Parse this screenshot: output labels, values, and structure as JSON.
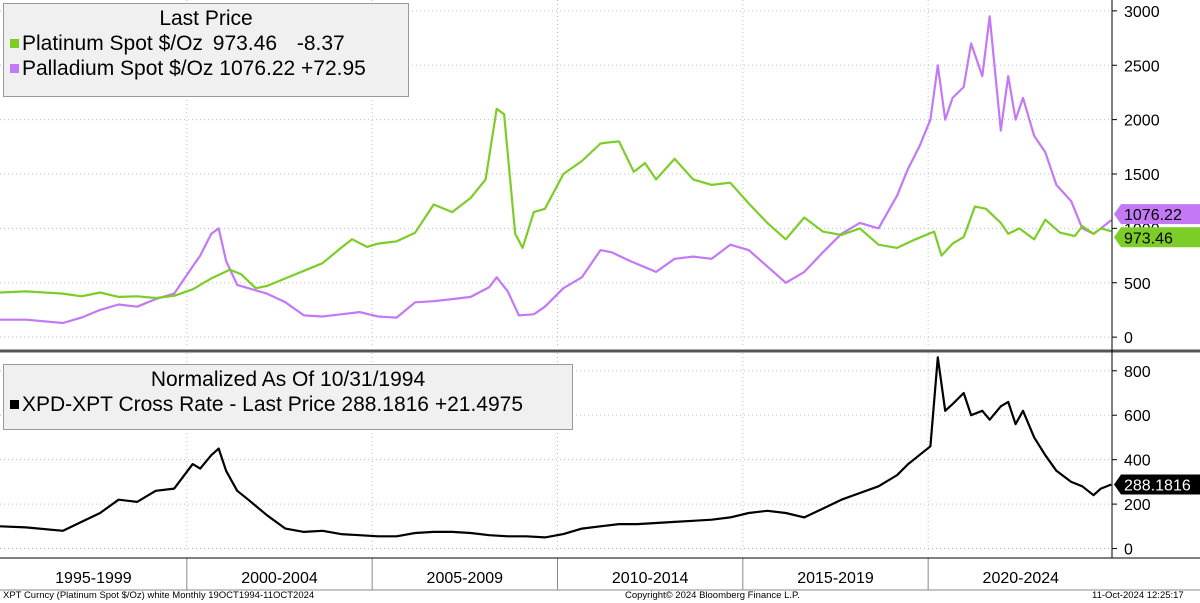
{
  "colors": {
    "platinum": "#7ccd28",
    "palladium": "#c379f5",
    "cross": "#000000",
    "grid": "#bfbfbf",
    "divider": "#555555"
  },
  "top_legend": {
    "title": "Last Price",
    "rows": [
      {
        "label": "Platinum Spot $/Oz",
        "last": "973.46",
        "change": "-8.37"
      },
      {
        "label": "Palladium Spot $/Oz",
        "last": "1076.22",
        "change": "+72.95"
      }
    ]
  },
  "bottom_legend": {
    "title": "Normalized As Of 10/31/1994",
    "row": {
      "label": "XPD-XPT Cross Rate - Last Price",
      "last": "288.1816",
      "change": "+21.4975"
    }
  },
  "tags": {
    "palladium": "1076.22",
    "platinum": "973.46",
    "cross": "288.1816"
  },
  "footer": {
    "left": "XPT Curncy (Platinum Spot $/Oz) white  Monthly 19OCT1994-11OCT2024",
    "center": "Copyright© 2024 Bloomberg Finance L.P.",
    "right": "11-Oct-2024 12:25:17"
  },
  "chart_data": [
    {
      "type": "line",
      "x_unit": "year",
      "xlim": [
        1994.8,
        2024.8
      ],
      "ylim": [
        -100,
        3100
      ],
      "yticks": [
        0,
        500,
        1000,
        1500,
        2000,
        2500,
        3000
      ],
      "grid": true,
      "legend_placement": "top-left",
      "period_labels": [
        "1995-1999",
        "2000-2004",
        "2005-2009",
        "2010-2014",
        "2015-2019",
        "2020-2024"
      ],
      "series": [
        {
          "name": "Platinum Spot $/Oz",
          "x": [
            1994.8,
            1995.5,
            1996.5,
            1997.0,
            1997.5,
            1998.0,
            1998.5,
            1999.0,
            1999.5,
            2000.0,
            2000.5,
            2001.0,
            2001.3,
            2001.7,
            2002.0,
            2002.5,
            2003.0,
            2003.5,
            2004.0,
            2004.3,
            2004.7,
            2005.0,
            2005.5,
            2006.0,
            2006.5,
            2007.0,
            2007.5,
            2007.9,
            2008.2,
            2008.4,
            2008.7,
            2008.9,
            2009.2,
            2009.5,
            2010.0,
            2010.5,
            2011.0,
            2011.2,
            2011.5,
            2011.9,
            2012.2,
            2012.5,
            2013.0,
            2013.5,
            2014.0,
            2014.5,
            2015.0,
            2015.5,
            2016.0,
            2016.5,
            2017.0,
            2017.5,
            2018.0,
            2018.5,
            2019.0,
            2019.5,
            2020.0,
            2020.2,
            2020.5,
            2020.8,
            2021.1,
            2021.4,
            2021.8,
            2022.0,
            2022.3,
            2022.7,
            2023.0,
            2023.4,
            2023.8,
            2024.0,
            2024.3,
            2024.5,
            2024.78
          ],
          "values": [
            410,
            420,
            400,
            375,
            410,
            370,
            375,
            360,
            380,
            440,
            540,
            620,
            580,
            450,
            470,
            540,
            610,
            680,
            820,
            900,
            830,
            860,
            880,
            960,
            1220,
            1150,
            1280,
            1450,
            2100,
            2050,
            950,
            820,
            1150,
            1180,
            1500,
            1620,
            1780,
            1790,
            1800,
            1520,
            1600,
            1450,
            1640,
            1450,
            1400,
            1420,
            1230,
            1050,
            900,
            1100,
            970,
            940,
            1000,
            850,
            820,
            900,
            970,
            750,
            860,
            920,
            1200,
            1180,
            1050,
            950,
            1000,
            900,
            1080,
            960,
            930,
            1020,
            950,
            1000,
            973.46
          ]
        },
        {
          "name": "Palladium Spot $/Oz",
          "x": [
            1994.8,
            1995.5,
            1996.5,
            1997.0,
            1997.5,
            1998.0,
            1998.5,
            1999.0,
            1999.5,
            2000.0,
            2000.2,
            2000.5,
            2000.7,
            2000.9,
            2001.2,
            2001.5,
            2002.0,
            2002.5,
            2003.0,
            2003.5,
            2004.0,
            2004.5,
            2005.0,
            2005.5,
            2006.0,
            2006.5,
            2007.0,
            2007.5,
            2008.0,
            2008.2,
            2008.5,
            2008.8,
            2009.2,
            2009.5,
            2010.0,
            2010.5,
            2011.0,
            2011.3,
            2011.8,
            2012.5,
            2013.0,
            2013.5,
            2014.0,
            2014.5,
            2015.0,
            2015.5,
            2016.0,
            2016.5,
            2017.0,
            2017.5,
            2018.0,
            2018.5,
            2019.0,
            2019.3,
            2019.6,
            2019.9,
            2020.1,
            2020.3,
            2020.5,
            2020.8,
            2021.0,
            2021.3,
            2021.5,
            2021.8,
            2022.0,
            2022.2,
            2022.4,
            2022.7,
            2023.0,
            2023.3,
            2023.7,
            2024.0,
            2024.3,
            2024.5,
            2024.78
          ],
          "values": [
            160,
            160,
            130,
            180,
            250,
            300,
            280,
            350,
            400,
            650,
            750,
            950,
            1000,
            700,
            480,
            450,
            400,
            320,
            200,
            190,
            210,
            230,
            190,
            180,
            320,
            330,
            350,
            370,
            460,
            550,
            420,
            200,
            210,
            280,
            450,
            550,
            800,
            780,
            700,
            600,
            720,
            740,
            720,
            850,
            800,
            650,
            500,
            600,
            780,
            950,
            1050,
            1000,
            1300,
            1550,
            1750,
            2000,
            2500,
            2000,
            2200,
            2300,
            2700,
            2400,
            2950,
            1900,
            2400,
            2000,
            2200,
            1850,
            1700,
            1400,
            1250,
            1000,
            950,
            1000,
            1076.22
          ]
        }
      ]
    },
    {
      "type": "line",
      "x_unit": "year",
      "xlim": [
        1994.8,
        2024.8
      ],
      "ylim": [
        -20,
        880
      ],
      "yticks": [
        0,
        200,
        400,
        600,
        800
      ],
      "grid": true,
      "legend_placement": "top-left",
      "series": [
        {
          "name": "XPD-XPT Cross Rate - Last Price",
          "x": [
            1994.8,
            1995.5,
            1996.5,
            1997.0,
            1997.5,
            1998.0,
            1998.5,
            1999.0,
            1999.5,
            2000.0,
            2000.2,
            2000.5,
            2000.7,
            2000.9,
            2001.2,
            2001.5,
            2002.0,
            2002.5,
            2003.0,
            2003.5,
            2004.0,
            2004.5,
            2005.0,
            2005.5,
            2006.0,
            2006.5,
            2007.0,
            2007.5,
            2008.0,
            2008.5,
            2009.0,
            2009.5,
            2010.0,
            2010.5,
            2011.0,
            2011.5,
            2012.0,
            2012.5,
            2013.0,
            2013.5,
            2014.0,
            2014.5,
            2015.0,
            2015.5,
            2016.0,
            2016.5,
            2017.0,
            2017.5,
            2018.0,
            2018.5,
            2019.0,
            2019.3,
            2019.6,
            2019.9,
            2020.1,
            2020.3,
            2020.5,
            2020.8,
            2021.0,
            2021.3,
            2021.5,
            2021.8,
            2022.0,
            2022.2,
            2022.4,
            2022.7,
            2023.0,
            2023.3,
            2023.7,
            2024.0,
            2024.3,
            2024.5,
            2024.78
          ],
          "values": [
            100,
            95,
            80,
            120,
            160,
            220,
            210,
            260,
            270,
            380,
            360,
            420,
            450,
            350,
            260,
            220,
            150,
            90,
            75,
            80,
            65,
            60,
            55,
            55,
            70,
            75,
            75,
            70,
            60,
            55,
            55,
            50,
            65,
            90,
            100,
            110,
            110,
            115,
            120,
            125,
            130,
            140,
            160,
            170,
            160,
            140,
            180,
            220,
            250,
            280,
            330,
            380,
            420,
            460,
            860,
            620,
            650,
            700,
            600,
            620,
            580,
            640,
            660,
            560,
            620,
            500,
            420,
            350,
            300,
            280,
            240,
            270,
            288.18
          ]
        }
      ]
    }
  ]
}
